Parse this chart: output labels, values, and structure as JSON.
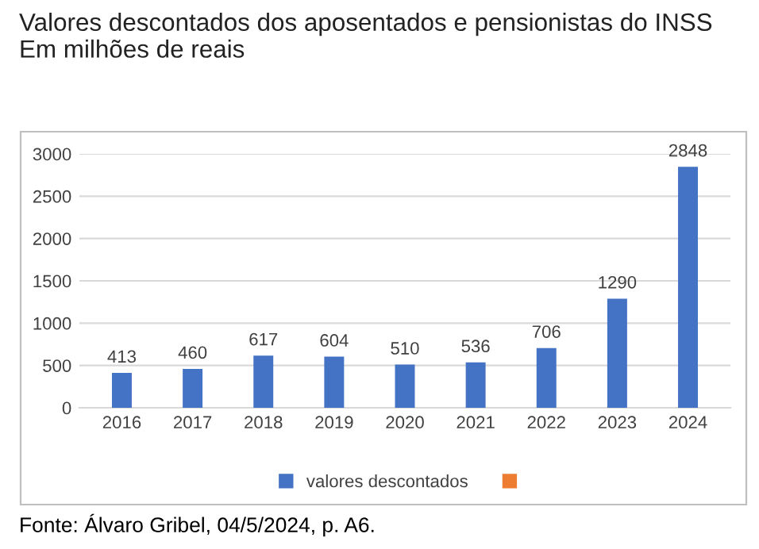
{
  "chart_data": {
    "type": "bar",
    "title": "Valores descontados dos aposentados e pensionistas do INSS\nEm milhões de reais",
    "categories": [
      "2016",
      "2017",
      "2018",
      "2019",
      "2020",
      "2021",
      "2022",
      "2023",
      "2024"
    ],
    "series": [
      {
        "name": "valores descontados",
        "color": "#4472c4",
        "values": [
          413,
          460,
          617,
          604,
          510,
          536,
          706,
          1290,
          2848
        ]
      },
      {
        "color": "#ed7d31",
        "values": [
          null,
          null,
          null,
          null,
          null,
          null,
          null,
          null,
          null
        ]
      }
    ],
    "ylim": [
      0,
      3000
    ],
    "yticks": [
      0,
      500,
      1000,
      1500,
      2000,
      2500,
      3000
    ],
    "grid": "y",
    "legend": "bottom",
    "data_labels": true,
    "annotations": [
      "Fonte: Álvaro Gribel, 04/5/2024, p. A6."
    ]
  }
}
